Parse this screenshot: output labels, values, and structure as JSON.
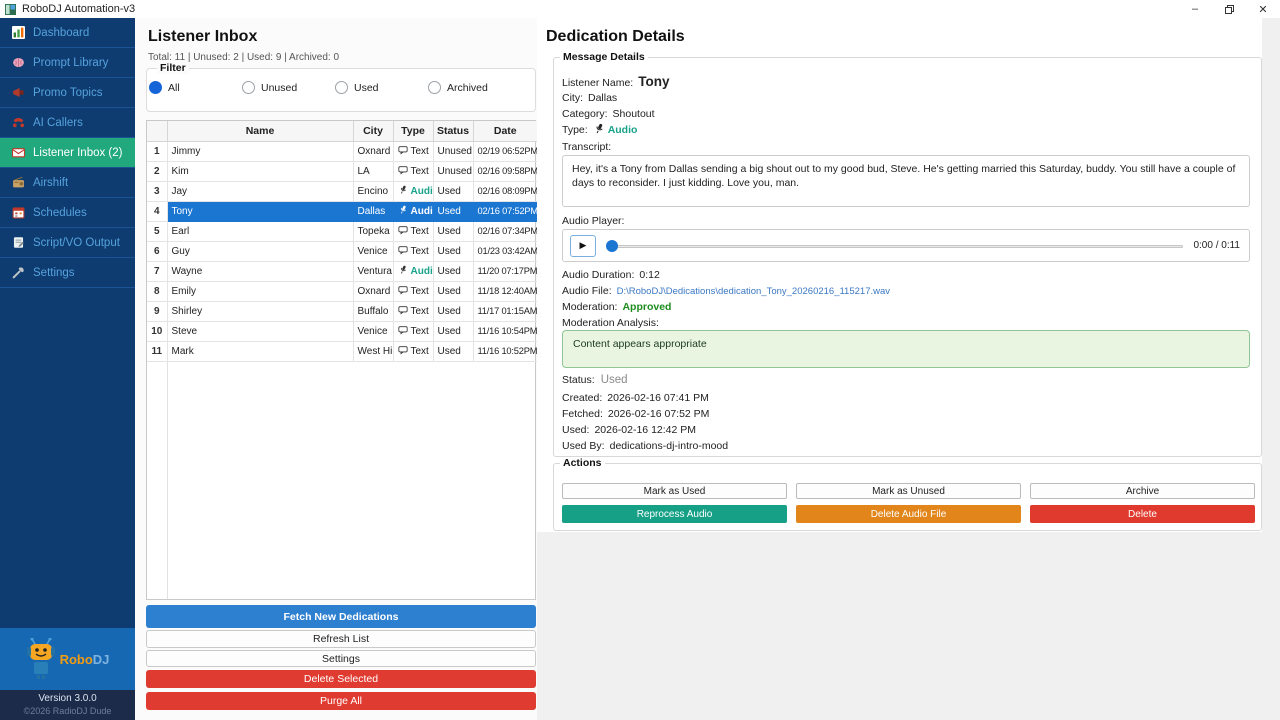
{
  "window": {
    "title": "RoboDJ Automation-v3",
    "controls": {
      "minimize": "–",
      "close": "✕"
    }
  },
  "sidebar": {
    "items": [
      {
        "label": "Dashboard",
        "icon": "dashboard-icon",
        "active": false
      },
      {
        "label": "Prompt Library",
        "icon": "brain-icon",
        "active": false
      },
      {
        "label": "Promo Topics",
        "icon": "megaphone-icon",
        "active": false
      },
      {
        "label": "AI Callers",
        "icon": "phone-icon",
        "active": false
      },
      {
        "label": "Listener Inbox (2)",
        "icon": "inbox-icon",
        "active": true
      },
      {
        "label": "Airshift",
        "icon": "radio-icon",
        "active": false
      },
      {
        "label": "Schedules",
        "icon": "calendar-icon",
        "active": false
      },
      {
        "label": "Script/VO Output",
        "icon": "pencil-icon",
        "active": false
      },
      {
        "label": "Settings",
        "icon": "wrench-icon",
        "active": false
      }
    ],
    "logo": {
      "robo": "Robo",
      "dj": "DJ"
    },
    "version": "Version 3.0.0",
    "copyright": "©2026 RadioDJ Dude"
  },
  "inbox": {
    "title": "Listener Inbox",
    "stats": "Total: 11 | Unused: 2 | Used: 9 | Archived: 0",
    "filter": {
      "label": "Filter",
      "options": [
        {
          "label": "All",
          "selected": true
        },
        {
          "label": "Unused",
          "selected": false
        },
        {
          "label": "Used",
          "selected": false
        },
        {
          "label": "Archived",
          "selected": false
        }
      ]
    },
    "table": {
      "headers": [
        "",
        "Name",
        "City",
        "Type",
        "Status",
        "Date"
      ],
      "rows": [
        {
          "num": "1",
          "name": "Jimmy",
          "city": "Oxnard",
          "type": "Text",
          "status": "Unused",
          "date": "02/19 06:52PM",
          "selected": false
        },
        {
          "num": "2",
          "name": "Kim",
          "city": "LA",
          "type": "Text",
          "status": "Unused",
          "date": "02/16 09:58PM",
          "selected": false
        },
        {
          "num": "3",
          "name": "Jay",
          "city": "Encino",
          "type": "Audio",
          "status": "Used",
          "date": "02/16 08:09PM",
          "selected": false
        },
        {
          "num": "4",
          "name": "Tony",
          "city": "Dallas",
          "type": "Audio",
          "status": "Used",
          "date": "02/16 07:52PM",
          "selected": true
        },
        {
          "num": "5",
          "name": "Earl",
          "city": "Topeka",
          "type": "Text",
          "status": "Used",
          "date": "02/16 07:34PM",
          "selected": false
        },
        {
          "num": "6",
          "name": "Guy",
          "city": "Venice",
          "type": "Text",
          "status": "Used",
          "date": "01/23 03:42AM",
          "selected": false
        },
        {
          "num": "7",
          "name": "Wayne",
          "city": "Ventura",
          "type": "Audio",
          "status": "Used",
          "date": "11/20 07:17PM",
          "selected": false
        },
        {
          "num": "8",
          "name": "Emily",
          "city": "Oxnard",
          "type": "Text",
          "status": "Used",
          "date": "11/18 12:40AM",
          "selected": false
        },
        {
          "num": "9",
          "name": "Shirley",
          "city": "Buffalo",
          "type": "Text",
          "status": "Used",
          "date": "11/17 01:15AM",
          "selected": false
        },
        {
          "num": "10",
          "name": "Steve",
          "city": "Venice",
          "type": "Text",
          "status": "Used",
          "date": "11/16 10:54PM",
          "selected": false
        },
        {
          "num": "11",
          "name": "Mark",
          "city": "West Hills",
          "type": "Text",
          "status": "Used",
          "date": "11/16 10:52PM",
          "selected": false
        }
      ]
    },
    "buttons": {
      "fetch": "Fetch New Dedications",
      "refresh": "Refresh List",
      "settings": "Settings",
      "delete_selected": "Delete Selected",
      "purge_all": "Purge All"
    }
  },
  "details": {
    "title": "Dedication Details",
    "group_label": "Message Details",
    "listener_name_label": "Listener Name:",
    "listener_name": "Tony",
    "city_label": "City:",
    "city": "Dallas",
    "category_label": "Category:",
    "category": "Shoutout",
    "type_label": "Type:",
    "type": "Audio",
    "transcript_label": "Transcript:",
    "transcript": "Hey, it's a Tony from Dallas sending a big shout out to my good bud, Steve. He's getting married this Saturday, buddy. You still have a couple of days to reconsider. I just kidding. Love you, man.",
    "audio_player_label": "Audio Player:",
    "play_glyph": "▶",
    "player_time": "0:00 / 0:11",
    "audio_duration_label": "Audio Duration:",
    "audio_duration": "0:12",
    "audio_file_label": "Audio File:",
    "audio_file": "D:\\RoboDJ\\Dedications\\dedication_Tony_20260216_115217.wav",
    "moderation_label": "Moderation:",
    "moderation": "Approved",
    "moderation_analysis_label": "Moderation Analysis:",
    "moderation_analysis": "Content appears appropriate",
    "status_label": "Status:",
    "status": "Used",
    "created_label": "Created:",
    "created": "2026-02-16 07:41 PM",
    "fetched_label": "Fetched:",
    "fetched": "2026-02-16 07:52 PM",
    "used_label": "Used:",
    "used": "2026-02-16 12:42 PM",
    "used_by_label": "Used By:",
    "used_by": "dedications-dj-intro-mood",
    "actions": {
      "label": "Actions",
      "row1": [
        "Mark as Used",
        "Mark as Unused",
        "Archive"
      ],
      "row2": [
        {
          "label": "Reprocess Audio",
          "color": "teal"
        },
        {
          "label": "Delete Audio File",
          "color": "orange"
        },
        {
          "label": "Delete",
          "color": "red"
        }
      ]
    }
  },
  "colors": {
    "sidebar_bg": "#0e3c70",
    "sidebar_active": "#21a97d",
    "selected_row": "#1b76d2",
    "fetch_blue": "#2d7fd0",
    "danger_red": "#e03b30",
    "teal_action": "#16a085",
    "orange_action": "#e2861c",
    "audio_teal": "#17a28a",
    "unused_green": "#2f9e41",
    "approved_green": "#1e8c1e",
    "analysis_bg": "#e9f5e1"
  }
}
